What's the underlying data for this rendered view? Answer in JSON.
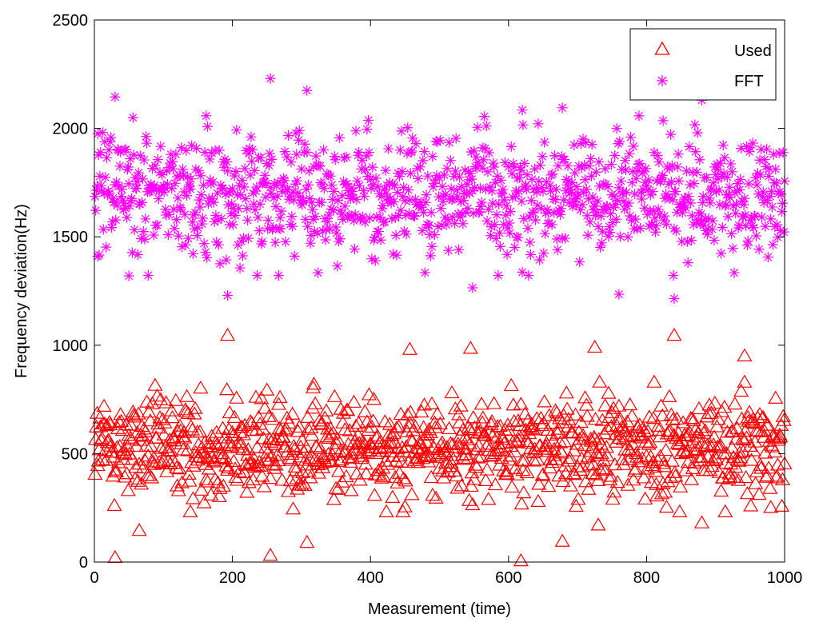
{
  "chart_data": {
    "type": "scatter",
    "title": "",
    "xlabel": "Measurement (time)",
    "ylabel": "Frequency deviation(Hz)",
    "xlim": [
      0,
      1000
    ],
    "ylim": [
      0,
      2500
    ],
    "x_ticks": [
      0,
      200,
      400,
      600,
      800,
      1000
    ],
    "y_ticks": [
      0,
      500,
      1000,
      1500,
      2000,
      2500
    ],
    "x_tick_labels": [
      "0",
      "200",
      "400",
      "600",
      "800",
      "1000"
    ],
    "y_tick_labels": [
      "0",
      "500",
      "1000",
      "1500",
      "2000",
      "2500"
    ],
    "grid": false,
    "legend_position": "top-right",
    "series": [
      {
        "name": "Used",
        "marker": "triangle",
        "color": "#ff0000",
        "n_points": 1000,
        "approx_mean": 530,
        "approx_spread": 130,
        "notable_points": [
          {
            "x": 30,
            "y": 20
          },
          {
            "x": 255,
            "y": 30
          },
          {
            "x": 308,
            "y": 90
          },
          {
            "x": 618,
            "y": 5
          },
          {
            "x": 678,
            "y": 95
          },
          {
            "x": 65,
            "y": 145
          },
          {
            "x": 193,
            "y": 1045
          },
          {
            "x": 840,
            "y": 1045
          },
          {
            "x": 545,
            "y": 985
          },
          {
            "x": 457,
            "y": 980
          },
          {
            "x": 725,
            "y": 990
          },
          {
            "x": 942,
            "y": 950
          },
          {
            "x": 880,
            "y": 180
          },
          {
            "x": 730,
            "y": 170
          }
        ]
      },
      {
        "name": "FFT",
        "marker": "asterisk",
        "color": "#ff00ff",
        "n_points": 1000,
        "approx_mean": 1690,
        "approx_spread": 160,
        "notable_points": [
          {
            "x": 255,
            "y": 2230
          },
          {
            "x": 30,
            "y": 2145
          },
          {
            "x": 308,
            "y": 2175
          },
          {
            "x": 880,
            "y": 2130
          },
          {
            "x": 193,
            "y": 1230
          },
          {
            "x": 840,
            "y": 1215
          },
          {
            "x": 760,
            "y": 1235
          },
          {
            "x": 548,
            "y": 1265
          },
          {
            "x": 5,
            "y": 1410
          },
          {
            "x": 50,
            "y": 1320
          },
          {
            "x": 620,
            "y": 2085
          },
          {
            "x": 678,
            "y": 2095
          }
        ]
      }
    ]
  }
}
